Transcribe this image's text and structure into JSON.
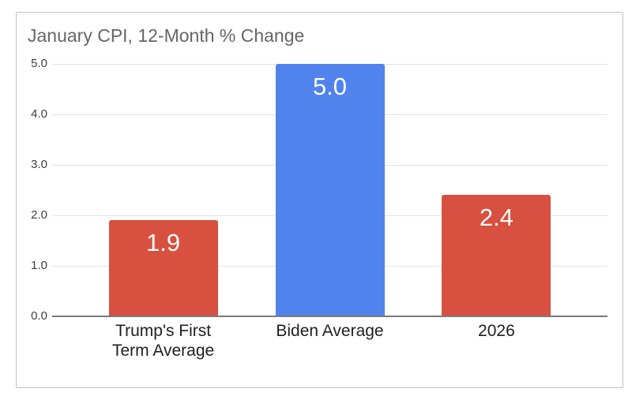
{
  "chart_data": {
    "type": "bar",
    "title": "January CPI, 12-Month % Change",
    "categories": [
      "Trump's First\nTerm Average",
      "Biden Average",
      "2026"
    ],
    "values": [
      1.9,
      5.0,
      2.4
    ],
    "value_labels": [
      "1.9",
      "5.0",
      "2.4"
    ],
    "bar_colors": [
      "#d8503f",
      "#5183ec",
      "#d8503f"
    ],
    "ylim": [
      0,
      5
    ],
    "yticks": [
      {
        "value": 5,
        "label": "5.0"
      },
      {
        "value": 4,
        "label": "4.0"
      },
      {
        "value": 3,
        "label": "3.0"
      },
      {
        "value": 2,
        "label": "2.0"
      },
      {
        "value": 1,
        "label": "1.0"
      },
      {
        "value": 0,
        "label": "0.0"
      }
    ],
    "grid": true,
    "legend": "none",
    "xlabel": "",
    "ylabel": ""
  },
  "colors": {
    "red": "#d8503f",
    "blue": "#5183ec",
    "title_text": "#666666",
    "axis_text": "#3c3c3c",
    "category_text": "#1f1f1f",
    "gridline": "#e2e2e2",
    "baseline": "#7a7a7a",
    "card_border": "#c2c2c2",
    "background": "#ffffff"
  }
}
